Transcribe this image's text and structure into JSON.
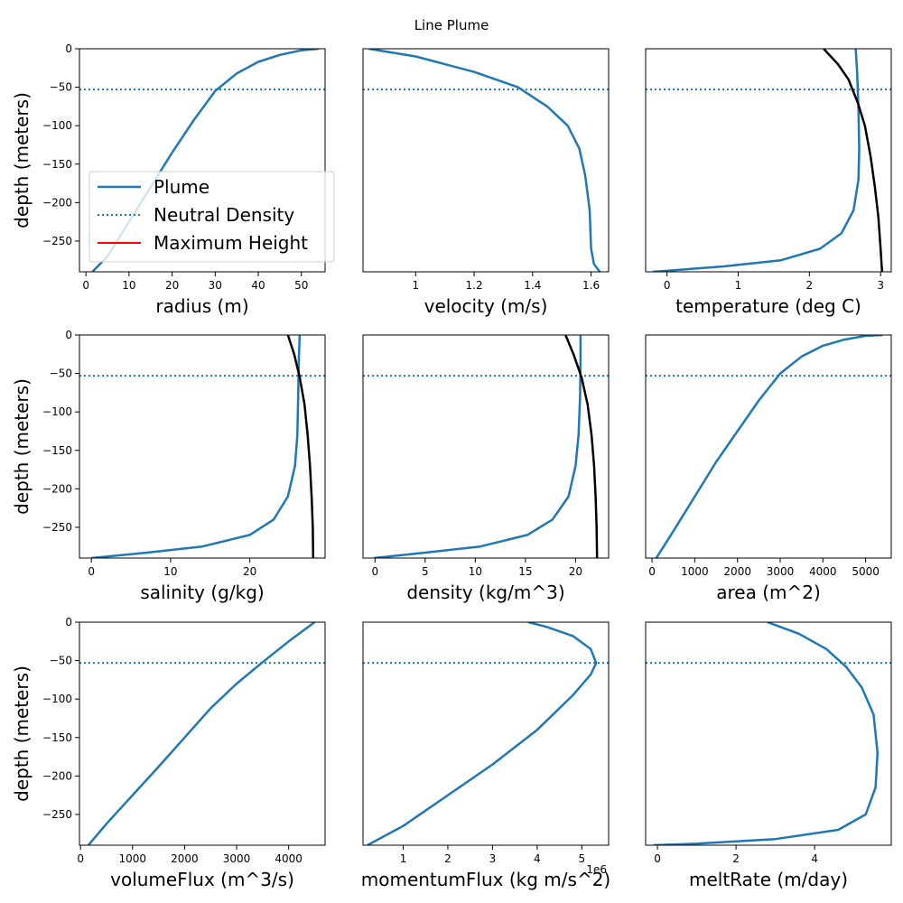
{
  "figure": {
    "title": "Line Plume"
  },
  "colors": {
    "plume": "#1f77b4",
    "ambient": "#000000",
    "max_height": "#ff0000"
  },
  "legend": {
    "entries": [
      {
        "label": "Plume",
        "style": "solid",
        "color": "#1f77b4"
      },
      {
        "label": "Neutral Density",
        "style": "dotted",
        "color": "#1f77b4"
      },
      {
        "label": "Maximum Height",
        "style": "solid",
        "color": "#ff0000"
      }
    ],
    "placement": "lower-left of first panel"
  },
  "chart_data": [
    {
      "type": "line",
      "xlabel": "radius (m)",
      "ylabel": "depth (meters)",
      "xlim": [
        -1.5,
        55.5
      ],
      "ylim": [
        -290,
        0
      ],
      "xticks": [
        0,
        10,
        20,
        30,
        40,
        50
      ],
      "yticks": [
        0,
        -50,
        -100,
        -150,
        -200,
        -250
      ],
      "neutral_density_depth": -53,
      "series": [
        {
          "name": "Plume",
          "role": "plume",
          "x": [
            1.5,
            5,
            10,
            15,
            20,
            25,
            30,
            35,
            40,
            45,
            50,
            54
          ],
          "y": [
            -290,
            -270,
            -225,
            -180,
            -135,
            -93,
            -55,
            -32,
            -17,
            -8,
            -2,
            0
          ]
        }
      ]
    },
    {
      "type": "line",
      "xlabel": "velocity (m/s)",
      "ylabel": "",
      "xlim": [
        0.82,
        1.66
      ],
      "ylim": [
        -290,
        0
      ],
      "xticks": [
        1.0,
        1.2,
        1.4,
        1.6
      ],
      "yticks": [],
      "neutral_density_depth": -53,
      "series": [
        {
          "role": "plume",
          "x": [
            0.84,
            1.0,
            1.2,
            1.35,
            1.45,
            1.52,
            1.56,
            1.58,
            1.595,
            1.6,
            1.61,
            1.63
          ],
          "y": [
            0,
            -10,
            -30,
            -50,
            -75,
            -100,
            -130,
            -165,
            -210,
            -260,
            -280,
            -290
          ]
        }
      ]
    },
    {
      "type": "line",
      "xlabel": "temperature (deg C)",
      "ylabel": "",
      "xlim": [
        -0.3,
        3.15
      ],
      "ylim": [
        -290,
        0
      ],
      "xticks": [
        0,
        1,
        2,
        3
      ],
      "yticks": [],
      "neutral_density_depth": -53,
      "series": [
        {
          "role": "plume",
          "x": [
            2.65,
            2.67,
            2.69,
            2.7,
            2.69,
            2.62,
            2.45,
            2.15,
            1.6,
            0.8,
            -0.2
          ],
          "y": [
            0,
            -30,
            -80,
            -130,
            -170,
            -210,
            -240,
            -260,
            -275,
            -283,
            -290
          ]
        },
        {
          "role": "ambient",
          "x": [
            2.2,
            2.4,
            2.55,
            2.68,
            2.78,
            2.86,
            2.92,
            2.97,
            3.0,
            3.02
          ],
          "y": [
            0,
            -20,
            -40,
            -70,
            -100,
            -140,
            -180,
            -220,
            -260,
            -290
          ]
        }
      ]
    },
    {
      "type": "line",
      "xlabel": "salinity (g/kg)",
      "ylabel": "depth (meters)",
      "xlim": [
        -1.5,
        29.5
      ],
      "ylim": [
        -290,
        0
      ],
      "xticks": [
        0,
        10,
        20
      ],
      "yticks": [
        0,
        -50,
        -100,
        -150,
        -200,
        -250
      ],
      "neutral_density_depth": -53,
      "series": [
        {
          "role": "plume",
          "x": [
            26.3,
            26.2,
            26.1,
            26.0,
            25.7,
            24.8,
            23.0,
            20.0,
            14.0,
            7.0,
            0.0
          ],
          "y": [
            0,
            -30,
            -80,
            -130,
            -170,
            -210,
            -240,
            -260,
            -275,
            -283,
            -290
          ]
        },
        {
          "role": "ambient",
          "x": [
            24.8,
            25.6,
            26.3,
            26.9,
            27.3,
            27.6,
            27.8,
            27.95,
            28.0
          ],
          "y": [
            0,
            -25,
            -55,
            -90,
            -130,
            -170,
            -210,
            -250,
            -290
          ]
        }
      ]
    },
    {
      "type": "line",
      "xlabel": "density (kg/m^3)",
      "ylabel": "",
      "xlim": [
        -1.2,
        23.3
      ],
      "ylim": [
        -290,
        0
      ],
      "xticks": [
        0,
        5,
        10,
        15,
        20
      ],
      "yticks": [],
      "neutral_density_depth": -53,
      "series": [
        {
          "role": "plume",
          "x": [
            20.5,
            20.5,
            20.45,
            20.3,
            20.0,
            19.3,
            17.7,
            15.2,
            10.5,
            5.0,
            -0.1
          ],
          "y": [
            0,
            -30,
            -80,
            -130,
            -170,
            -210,
            -240,
            -260,
            -275,
            -283,
            -290
          ]
        },
        {
          "role": "ambient",
          "x": [
            19.0,
            19.8,
            20.6,
            21.2,
            21.6,
            21.85,
            22.0,
            22.1,
            22.15
          ],
          "y": [
            0,
            -25,
            -55,
            -90,
            -130,
            -170,
            -210,
            -250,
            -290
          ]
        }
      ]
    },
    {
      "type": "line",
      "xlabel": "area (m^2)",
      "ylabel": "",
      "xlim": [
        -150,
        5600
      ],
      "ylim": [
        -290,
        0
      ],
      "xticks": [
        0,
        1000,
        2000,
        3000,
        4000,
        5000
      ],
      "yticks": [],
      "neutral_density_depth": -53,
      "series": [
        {
          "role": "plume",
          "x": [
            100,
            500,
            1000,
            1500,
            2000,
            2500,
            3000,
            3500,
            4000,
            4500,
            5000,
            5400
          ],
          "y": [
            -290,
            -255,
            -210,
            -165,
            -125,
            -85,
            -50,
            -28,
            -14,
            -6,
            -1,
            0
          ]
        }
      ]
    },
    {
      "type": "line",
      "xlabel": "volumeFlux (m^3/s)",
      "ylabel": "depth (meters)",
      "xlim": [
        -20,
        4700
      ],
      "ylim": [
        -290,
        0
      ],
      "xticks": [
        0,
        1000,
        2000,
        3000,
        4000
      ],
      "yticks": [
        0,
        -50,
        -100,
        -150,
        -200,
        -250
      ],
      "neutral_density_depth": -53,
      "series": [
        {
          "role": "plume",
          "x": [
            150,
            500,
            1000,
            1500,
            2000,
            2500,
            3000,
            3500,
            4000,
            4300,
            4500
          ],
          "y": [
            -290,
            -262,
            -225,
            -188,
            -150,
            -112,
            -80,
            -52,
            -25,
            -10,
            0
          ]
        }
      ]
    },
    {
      "type": "line",
      "xlabel": "momentumFlux (kg m/s^2)",
      "ylabel": "",
      "x_offset_text": "1e6",
      "xlim": [
        0.1,
        5.6
      ],
      "ylim": [
        -290,
        0
      ],
      "xticks": [
        1,
        2,
        3,
        4,
        5
      ],
      "yticks": [],
      "neutral_density_depth": -53,
      "series": [
        {
          "role": "plume",
          "x": [
            0.2,
            1.0,
            2.0,
            3.0,
            4.0,
            4.8,
            5.2,
            5.32,
            5.2,
            4.8,
            4.2,
            3.8
          ],
          "y": [
            -290,
            -265,
            -225,
            -185,
            -140,
            -95,
            -68,
            -53,
            -35,
            -18,
            -6,
            0
          ]
        }
      ]
    },
    {
      "type": "line",
      "xlabel": "meltRate (m/day)",
      "ylabel": "",
      "xlim": [
        -0.3,
        5.95
      ],
      "ylim": [
        -290,
        0
      ],
      "xticks": [
        0,
        2,
        4
      ],
      "yticks": [],
      "neutral_density_depth": -53,
      "series": [
        {
          "role": "plume",
          "x": [
            2.8,
            3.6,
            4.3,
            4.8,
            5.2,
            5.5,
            5.6,
            5.55,
            5.3,
            4.6,
            3.0,
            1.0,
            -0.1
          ],
          "y": [
            0,
            -15,
            -35,
            -58,
            -85,
            -120,
            -170,
            -215,
            -250,
            -270,
            -282,
            -288,
            -290
          ]
        }
      ]
    }
  ]
}
